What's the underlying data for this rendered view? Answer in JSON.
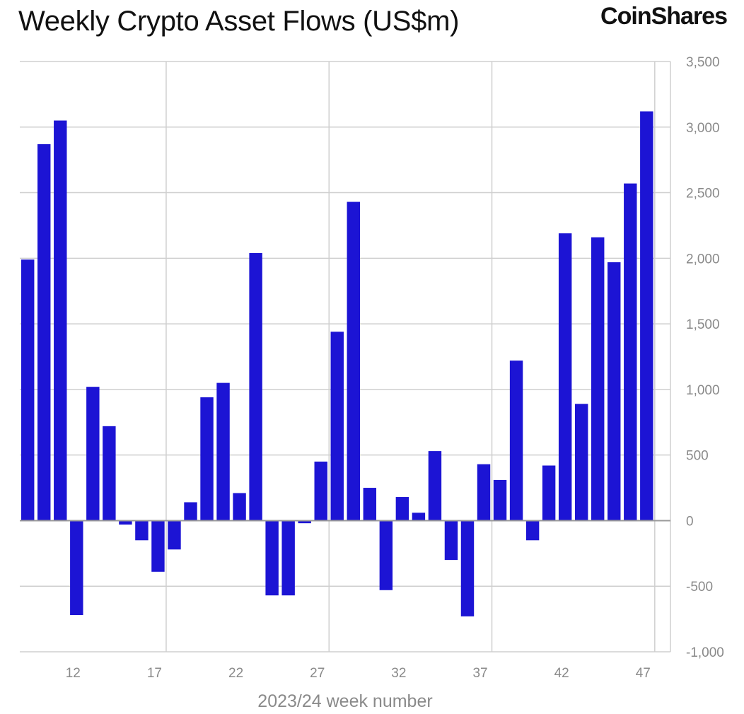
{
  "header": {
    "title": "Weekly Crypto Asset Flows (US$m)",
    "brand": "CoinShares"
  },
  "colors": {
    "bar": "#1c14d4",
    "grid": "#cfcfcf",
    "zero_line": "#9a9a9a",
    "tick_text": "#8a8a8a"
  },
  "chart_data": {
    "type": "bar",
    "title": "Weekly Crypto Asset Flows (US$m)",
    "xlabel": "2023/24 week number",
    "ylabel": "",
    "ylim": [
      -1000,
      3500
    ],
    "yticks": [
      3500,
      3000,
      2500,
      2000,
      1500,
      1000,
      500,
      0,
      -500,
      -1000
    ],
    "ytick_labels": [
      "3,500",
      "3,000",
      "2,500",
      "2,000",
      "1,500",
      "1,000",
      "500",
      "0",
      "-500",
      "-1,000"
    ],
    "y_axis_side": "right",
    "grid": true,
    "categories": [
      9,
      10,
      11,
      12,
      13,
      14,
      15,
      16,
      17,
      18,
      19,
      20,
      21,
      22,
      23,
      24,
      25,
      26,
      27,
      28,
      29,
      30,
      31,
      32,
      33,
      34,
      35,
      36,
      37,
      38,
      39,
      40,
      41,
      42,
      43,
      44,
      45,
      46,
      47,
      48
    ],
    "xtick_labels": [
      "12",
      "17",
      "22",
      "27",
      "32",
      "37",
      "42",
      "47"
    ],
    "values": [
      1990,
      2870,
      3050,
      -720,
      1020,
      720,
      -30,
      -150,
      -390,
      -220,
      140,
      940,
      1050,
      210,
      2040,
      -570,
      -570,
      -20,
      450,
      1440,
      2430,
      250,
      -530,
      180,
      60,
      530,
      -300,
      -730,
      430,
      310,
      1220,
      -150,
      420,
      2190,
      890,
      2160,
      1970,
      2570,
      3120,
      0
    ]
  }
}
